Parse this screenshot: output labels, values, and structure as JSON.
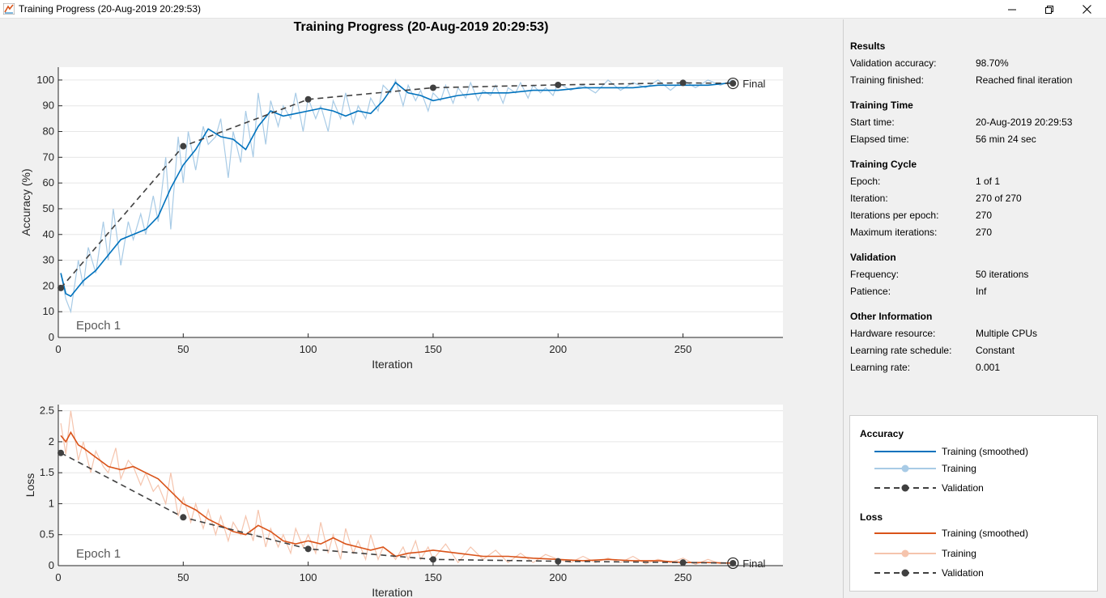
{
  "window": {
    "title": "Training Progress (20-Aug-2019 20:29:53)",
    "controls": [
      "minimize-icon",
      "restore-icon",
      "close-icon"
    ]
  },
  "plot": {
    "title": "Training Progress (20-Aug-2019 20:29:53)"
  },
  "chart_data": [
    {
      "type": "line",
      "ylabel": "Accuracy (%)",
      "xlabel": "Iteration",
      "xlim": [
        0,
        290
      ],
      "ylim": [
        0,
        105
      ],
      "xticks": [
        0,
        50,
        100,
        150,
        200,
        250
      ],
      "yticks": [
        0,
        10,
        20,
        30,
        40,
        50,
        60,
        70,
        80,
        90,
        100
      ],
      "annotation": "Epoch 1",
      "final_label": "Final",
      "grid": true,
      "colors": {
        "smoothed": "#0072bd",
        "raw": "#a8cbe6",
        "validation": "#404040"
      },
      "series": [
        {
          "name": "Training (smoothed)",
          "x": [
            1,
            3,
            5,
            10,
            15,
            20,
            25,
            30,
            35,
            40,
            45,
            50,
            55,
            60,
            65,
            70,
            75,
            80,
            85,
            90,
            95,
            100,
            105,
            110,
            115,
            120,
            125,
            130,
            135,
            140,
            145,
            150,
            160,
            170,
            180,
            190,
            200,
            210,
            220,
            230,
            240,
            250,
            260,
            270
          ],
          "y": [
            25,
            17,
            16,
            22,
            26,
            32,
            38,
            40,
            42,
            47,
            58,
            67,
            73,
            81,
            78,
            77,
            73,
            82,
            88,
            86,
            87,
            88,
            89,
            88,
            86,
            88,
            87,
            92,
            99,
            95,
            94,
            92,
            94,
            95,
            95,
            96,
            96,
            97,
            97,
            97,
            98,
            98,
            98,
            99
          ]
        },
        {
          "name": "Training",
          "x": [
            1,
            3,
            5,
            8,
            10,
            12,
            15,
            18,
            20,
            22,
            25,
            28,
            30,
            33,
            35,
            38,
            40,
            43,
            45,
            48,
            50,
            52,
            55,
            58,
            60,
            63,
            65,
            68,
            70,
            73,
            75,
            78,
            80,
            83,
            85,
            88,
            90,
            93,
            95,
            98,
            100,
            103,
            105,
            108,
            110,
            113,
            115,
            118,
            120,
            123,
            125,
            128,
            130,
            133,
            135,
            138,
            140,
            143,
            145,
            148,
            150,
            153,
            155,
            158,
            160,
            163,
            165,
            168,
            170,
            173,
            175,
            178,
            180,
            183,
            185,
            188,
            190,
            193,
            195,
            198,
            200,
            205,
            210,
            215,
            220,
            225,
            230,
            235,
            240,
            245,
            250,
            255,
            260,
            265,
            270
          ],
          "y": [
            25,
            15,
            10,
            30,
            20,
            35,
            25,
            45,
            30,
            50,
            28,
            45,
            38,
            48,
            40,
            55,
            45,
            70,
            42,
            78,
            60,
            80,
            65,
            82,
            75,
            78,
            85,
            62,
            80,
            68,
            88,
            70,
            95,
            75,
            92,
            82,
            90,
            85,
            95,
            80,
            93,
            85,
            90,
            80,
            92,
            85,
            95,
            83,
            90,
            85,
            93,
            88,
            98,
            95,
            100,
            90,
            98,
            92,
            96,
            88,
            95,
            92,
            98,
            91,
            97,
            93,
            99,
            92,
            96,
            94,
            98,
            91,
            97,
            95,
            99,
            93,
            98,
            95,
            97,
            94,
            99,
            96,
            98,
            95,
            100,
            96,
            99,
            97,
            100,
            96,
            100,
            97,
            100,
            98,
            100
          ]
        },
        {
          "name": "Validation",
          "x": [
            1,
            50,
            100,
            150,
            200,
            250,
            270
          ],
          "y": [
            19.2,
            74.3,
            92.5,
            97,
            98.1,
            98.9,
            98.7
          ]
        }
      ]
    },
    {
      "type": "line",
      "ylabel": "Loss",
      "xlabel": "Iteration",
      "xlim": [
        0,
        290
      ],
      "ylim": [
        0,
        2.6
      ],
      "xticks": [
        0,
        50,
        100,
        150,
        200,
        250
      ],
      "yticks": [
        0,
        0.5,
        1,
        1.5,
        2,
        2.5
      ],
      "annotation": "Epoch 1",
      "final_label": "Final",
      "grid": true,
      "colors": {
        "smoothed": "#d95319",
        "raw": "#f5c4ad",
        "validation": "#404040"
      },
      "series": [
        {
          "name": "Training (smoothed)",
          "x": [
            1,
            3,
            5,
            8,
            10,
            15,
            20,
            25,
            30,
            35,
            40,
            45,
            50,
            55,
            60,
            65,
            70,
            75,
            80,
            85,
            90,
            95,
            100,
            105,
            110,
            115,
            120,
            125,
            130,
            135,
            140,
            145,
            150,
            160,
            170,
            180,
            190,
            200,
            210,
            220,
            230,
            240,
            250,
            260,
            270
          ],
          "y": [
            2.1,
            2.0,
            2.15,
            1.95,
            1.9,
            1.75,
            1.6,
            1.55,
            1.6,
            1.5,
            1.4,
            1.2,
            1.0,
            0.9,
            0.75,
            0.65,
            0.55,
            0.5,
            0.65,
            0.55,
            0.4,
            0.35,
            0.4,
            0.35,
            0.45,
            0.35,
            0.3,
            0.25,
            0.3,
            0.15,
            0.2,
            0.22,
            0.25,
            0.2,
            0.15,
            0.15,
            0.12,
            0.1,
            0.08,
            0.1,
            0.08,
            0.08,
            0.05,
            0.05,
            0.04
          ]
        },
        {
          "name": "Training",
          "x": [
            1,
            3,
            5,
            8,
            10,
            13,
            15,
            18,
            20,
            23,
            25,
            28,
            30,
            33,
            35,
            38,
            40,
            43,
            45,
            48,
            50,
            53,
            55,
            58,
            60,
            63,
            65,
            68,
            70,
            73,
            75,
            78,
            80,
            83,
            85,
            88,
            90,
            93,
            95,
            98,
            100,
            103,
            105,
            108,
            110,
            113,
            115,
            118,
            120,
            123,
            125,
            128,
            130,
            133,
            135,
            138,
            140,
            143,
            145,
            148,
            150,
            155,
            160,
            165,
            170,
            175,
            180,
            185,
            190,
            195,
            200,
            205,
            210,
            215,
            220,
            225,
            230,
            235,
            240,
            245,
            250,
            255,
            260,
            265,
            270
          ],
          "y": [
            2.3,
            1.8,
            2.5,
            1.7,
            2.0,
            1.5,
            1.85,
            1.6,
            1.5,
            1.9,
            1.4,
            1.7,
            1.6,
            1.3,
            1.5,
            1.2,
            1.3,
            1.0,
            1.5,
            0.8,
            1.1,
            0.7,
            1.0,
            0.6,
            0.9,
            0.5,
            0.8,
            0.4,
            0.7,
            0.5,
            0.8,
            0.4,
            0.9,
            0.3,
            0.6,
            0.3,
            0.5,
            0.2,
            0.6,
            0.3,
            0.5,
            0.2,
            0.7,
            0.2,
            0.5,
            0.1,
            0.6,
            0.2,
            0.4,
            0.1,
            0.5,
            0.1,
            0.3,
            0.2,
            0.1,
            0.3,
            0.1,
            0.4,
            0.1,
            0.3,
            0.1,
            0.35,
            0.05,
            0.3,
            0.1,
            0.25,
            0.05,
            0.2,
            0.05,
            0.18,
            0.1,
            0.05,
            0.15,
            0.05,
            0.12,
            0.05,
            0.15,
            0.03,
            0.1,
            0.05,
            0.12,
            0.02,
            0.1,
            0.03,
            0.05
          ]
        },
        {
          "name": "Validation",
          "x": [
            1,
            50,
            100,
            150,
            200,
            250,
            270
          ],
          "y": [
            1.82,
            0.78,
            0.27,
            0.1,
            0.07,
            0.05,
            0.04
          ]
        }
      ]
    }
  ],
  "panel": {
    "results": {
      "heading": "Results",
      "rows": [
        {
          "label": "Validation accuracy:",
          "value": "98.70%"
        },
        {
          "label": "Training finished:",
          "value": "Reached final iteration"
        }
      ]
    },
    "training_time": {
      "heading": "Training Time",
      "rows": [
        {
          "label": "Start time:",
          "value": "20-Aug-2019 20:29:53"
        },
        {
          "label": "Elapsed time:",
          "value": "56 min 24 sec"
        }
      ]
    },
    "training_cycle": {
      "heading": "Training Cycle",
      "rows": [
        {
          "label": "Epoch:",
          "value": "1 of 1"
        },
        {
          "label": "Iteration:",
          "value": "270 of 270"
        },
        {
          "label": "Iterations per epoch:",
          "value": "270"
        },
        {
          "label": "Maximum iterations:",
          "value": "270"
        }
      ]
    },
    "validation": {
      "heading": "Validation",
      "rows": [
        {
          "label": "Frequency:",
          "value": "50 iterations"
        },
        {
          "label": "Patience:",
          "value": "Inf"
        }
      ]
    },
    "other": {
      "heading": "Other Information",
      "rows": [
        {
          "label": "Hardware resource:",
          "value": "Multiple CPUs"
        },
        {
          "label": "Learning rate schedule:",
          "value": "Constant"
        },
        {
          "label": "Learning rate:",
          "value": "0.001"
        }
      ]
    }
  },
  "legend": {
    "accuracy": {
      "heading": "Accuracy",
      "items": [
        "Training (smoothed)",
        "Training",
        "Validation"
      ]
    },
    "loss": {
      "heading": "Loss",
      "items": [
        "Training (smoothed)",
        "Training",
        "Validation"
      ]
    }
  }
}
